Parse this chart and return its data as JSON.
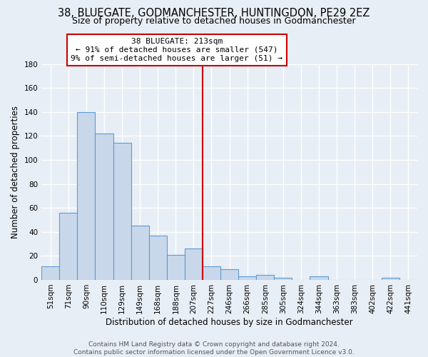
{
  "title": "38, BLUEGATE, GODMANCHESTER, HUNTINGDON, PE29 2EZ",
  "subtitle": "Size of property relative to detached houses in Godmanchester",
  "xlabel": "Distribution of detached houses by size in Godmanchester",
  "ylabel": "Number of detached properties",
  "bar_labels": [
    "51sqm",
    "71sqm",
    "90sqm",
    "110sqm",
    "129sqm",
    "149sqm",
    "168sqm",
    "188sqm",
    "207sqm",
    "227sqm",
    "246sqm",
    "266sqm",
    "285sqm",
    "305sqm",
    "324sqm",
    "344sqm",
    "363sqm",
    "383sqm",
    "402sqm",
    "422sqm",
    "441sqm"
  ],
  "bar_values": [
    11,
    56,
    140,
    122,
    114,
    45,
    37,
    21,
    26,
    11,
    9,
    3,
    4,
    2,
    0,
    3,
    0,
    0,
    0,
    2,
    0
  ],
  "bar_color": "#c8d8ea",
  "bar_edge_color": "#5b9bd5",
  "ylim": [
    0,
    180
  ],
  "yticks": [
    0,
    20,
    40,
    60,
    80,
    100,
    120,
    140,
    160,
    180
  ],
  "vline_index": 8,
  "vline_color": "#cc0000",
  "annotation_title": "38 BLUEGATE: 213sqm",
  "annotation_line1": "← 91% of detached houses are smaller (547)",
  "annotation_line2": "9% of semi-detached houses are larger (51) →",
  "annotation_box_color": "#ffffff",
  "annotation_box_edge": "#cc0000",
  "footer1": "Contains HM Land Registry data © Crown copyright and database right 2024.",
  "footer2": "Contains public sector information licensed under the Open Government Licence v3.0.",
  "bg_color": "#e8eef5",
  "plot_bg_color": "#e8eef5",
  "grid_color": "#ffffff",
  "title_fontsize": 10.5,
  "subtitle_fontsize": 9,
  "xlabel_fontsize": 8.5,
  "ylabel_fontsize": 8.5,
  "tick_fontsize": 7.5,
  "annotation_fontsize": 8,
  "footer_fontsize": 6.5
}
